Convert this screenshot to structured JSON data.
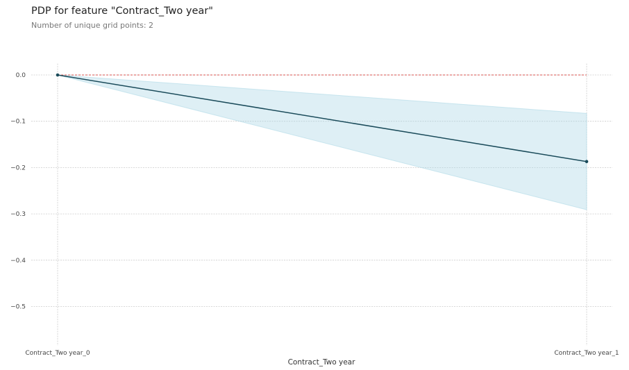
{
  "chart_data": {
    "type": "line",
    "title": "PDP for feature \"Contract_Two year\"",
    "subtitle": "Number of unique grid points: 2",
    "xlabel": "Contract_Two year",
    "ylabel": "",
    "categories": [
      "Contract_Two year_0",
      "Contract_Two year_1"
    ],
    "series": [
      {
        "values": [
          0.0,
          -0.187
        ],
        "upper": [
          0.0,
          -0.083
        ],
        "lower": [
          0.0,
          -0.291
        ]
      }
    ],
    "reference_line": 0.0,
    "yticks": [
      0.0,
      -0.1,
      -0.2,
      -0.3,
      -0.4,
      -0.5
    ],
    "ytick_labels": [
      "0.0",
      "−0.1",
      "−0.2",
      "−0.3",
      "−0.4",
      "−0.5"
    ],
    "ylim": [
      -0.58,
      0.02
    ],
    "grid": true,
    "colors": {
      "line": "#1a4b5a",
      "band": "#add8e6",
      "reference": "#d9534f",
      "grid": "#cccccc"
    }
  }
}
